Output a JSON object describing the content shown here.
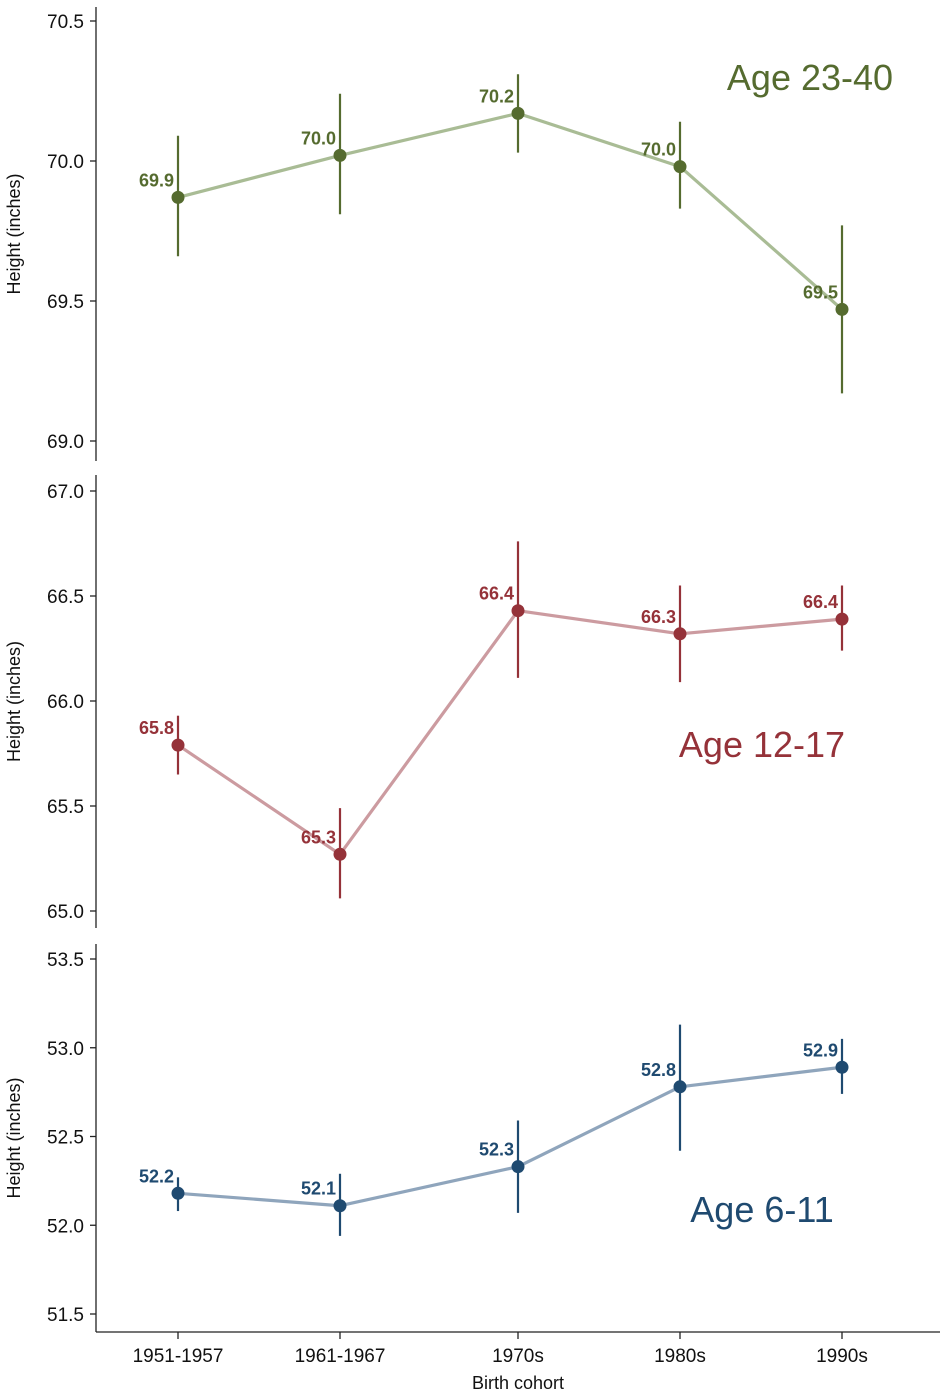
{
  "chart_data": {
    "type": "line",
    "xlabel": "Birth cohort",
    "ylabel": "Height (inches)",
    "categories": [
      "1951-1957",
      "1961-1967",
      "1970s",
      "1980s",
      "1990s"
    ],
    "grid": false,
    "panels": [
      {
        "title": "Age 23-40",
        "color": "#556b2f",
        "line_color": "#a9bc95",
        "ylim": [
          69.0,
          70.5
        ],
        "yticks": [
          "69.0",
          "69.5",
          "70.0",
          "70.5"
        ],
        "values": [
          69.87,
          70.02,
          70.17,
          69.98,
          69.47
        ],
        "ci_low": [
          69.66,
          69.81,
          70.03,
          69.83,
          69.17
        ],
        "ci_high": [
          70.09,
          70.24,
          70.31,
          70.14,
          69.77
        ],
        "labels": [
          "69.9",
          "70.0",
          "70.2",
          "70.0",
          "69.5"
        ]
      },
      {
        "title": "Age 12-17",
        "color": "#953239",
        "line_color": "#cc9ba0",
        "ylim": [
          65.0,
          67.0
        ],
        "yticks": [
          "65.0",
          "65.5",
          "66.0",
          "66.5",
          "67.0"
        ],
        "values": [
          65.79,
          65.27,
          66.43,
          66.32,
          66.39
        ],
        "ci_low": [
          65.65,
          65.06,
          66.11,
          66.09,
          66.24
        ],
        "ci_high": [
          65.93,
          65.49,
          66.76,
          66.55,
          66.55
        ],
        "labels": [
          "65.8",
          "65.3",
          "66.4",
          "66.3",
          "66.4"
        ]
      },
      {
        "title": "Age 6-11",
        "color": "#1f4a70",
        "line_color": "#8fa5bc",
        "ylim": [
          51.5,
          53.5
        ],
        "yticks": [
          "51.5",
          "52.0",
          "52.5",
          "53.0",
          "53.5"
        ],
        "values": [
          52.18,
          52.11,
          52.33,
          52.78,
          52.89
        ],
        "ci_low": [
          52.08,
          51.94,
          52.07,
          52.42,
          52.74
        ],
        "ci_high": [
          52.27,
          52.29,
          52.59,
          53.13,
          53.05
        ],
        "labels": [
          "52.2",
          "52.1",
          "52.3",
          "52.8",
          "52.9"
        ]
      }
    ]
  }
}
